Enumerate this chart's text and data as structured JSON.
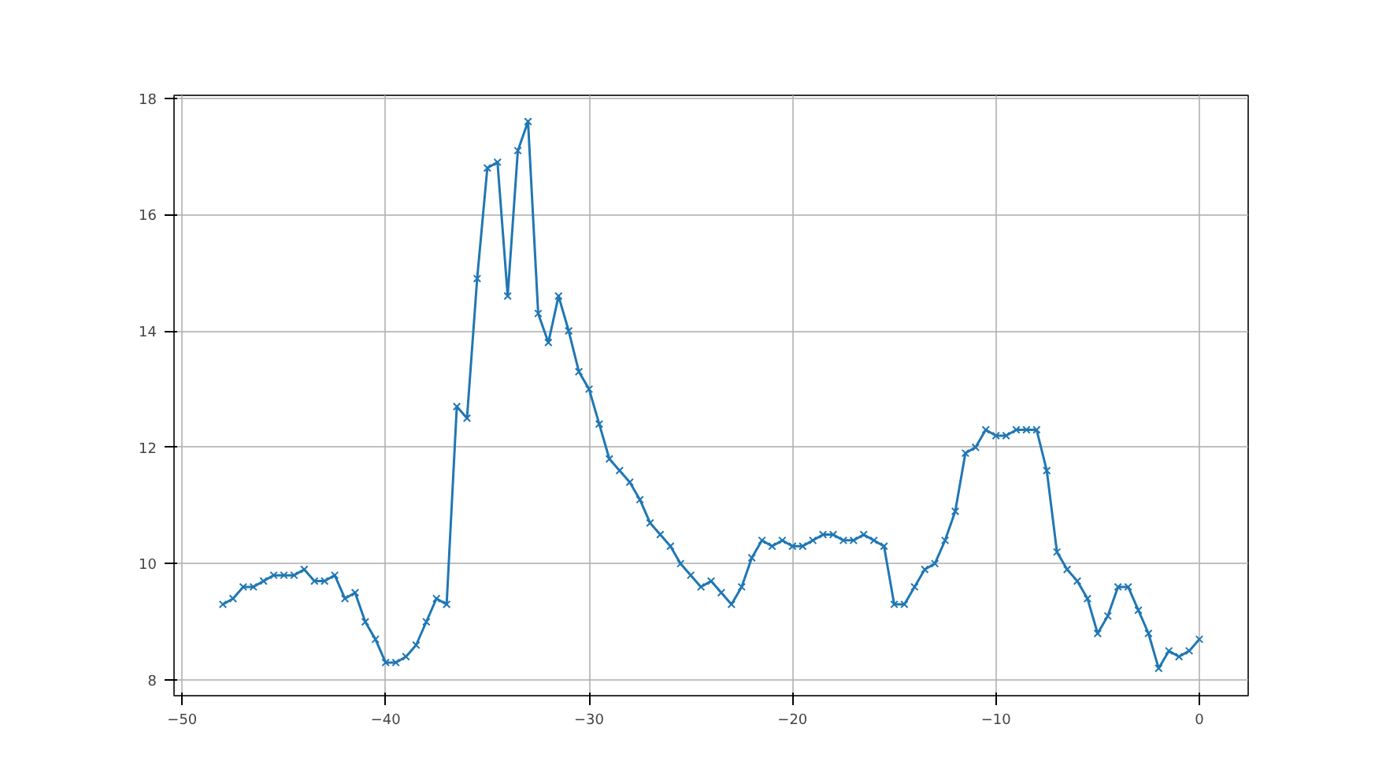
{
  "chart_data": {
    "type": "line",
    "marker": "cross",
    "grid": true,
    "xlim": [
      -50.4,
      2.4
    ],
    "ylim": [
      7.73,
      18.05
    ],
    "xticks": [
      -50,
      -40,
      -30,
      -20,
      -10,
      0
    ],
    "yticks": [
      8,
      10,
      12,
      14,
      16,
      18
    ],
    "x": [
      -48,
      -47.5,
      -47,
      -46.5,
      -46,
      -45.5,
      -45,
      -44.5,
      -44,
      -43.5,
      -43,
      -42.5,
      -42,
      -41.5,
      -41,
      -40.5,
      -40,
      -39.5,
      -39,
      -38.5,
      -38,
      -37.5,
      -37,
      -36.5,
      -36,
      -35.5,
      -35,
      -34.5,
      -34,
      -33.5,
      -33,
      -32.5,
      -32,
      -31.5,
      -31,
      -30.5,
      -30,
      -29.5,
      -29,
      -28.5,
      -28,
      -27.5,
      -27,
      -26.5,
      -26,
      -25.5,
      -25,
      -24.5,
      -24,
      -23.5,
      -23,
      -22.5,
      -22,
      -21.5,
      -21,
      -20.5,
      -20,
      -19.5,
      -19,
      -18.5,
      -18,
      -17.5,
      -17,
      -16.5,
      -16,
      -15.5,
      -15,
      -14.5,
      -14,
      -13.5,
      -13,
      -12.5,
      -12,
      -11.5,
      -11,
      -10.5,
      -10,
      -9.5,
      -9,
      -8.5,
      -8,
      -7.5,
      -7,
      -6.5,
      -6,
      -5.5,
      -5,
      -4.5,
      -4,
      -3.5,
      -3,
      -2.5,
      -2,
      -1.5,
      -1,
      -0.5,
      0
    ],
    "series": [
      {
        "color": "#1f77b4",
        "values": [
          9.3,
          9.4,
          9.6,
          9.6,
          9.7,
          9.8,
          9.8,
          9.8,
          9.9,
          9.7,
          9.7,
          9.8,
          9.4,
          9.5,
          9.0,
          8.7,
          8.3,
          8.3,
          8.4,
          8.6,
          9.0,
          9.4,
          9.3,
          12.7,
          12.5,
          14.9,
          16.8,
          16.9,
          14.6,
          17.1,
          17.6,
          14.3,
          13.8,
          14.6,
          14.0,
          13.3,
          13.0,
          12.4,
          11.8,
          11.6,
          11.4,
          11.1,
          10.7,
          10.5,
          10.3,
          10.0,
          9.8,
          9.6,
          9.7,
          9.5,
          9.3,
          9.6,
          10.1,
          10.4,
          10.3,
          10.4,
          10.3,
          10.3,
          10.4,
          10.5,
          10.5,
          10.4,
          10.4,
          10.5,
          10.4,
          10.3,
          9.3,
          9.3,
          9.6,
          9.9,
          10.0,
          10.4,
          10.9,
          11.9,
          12.0,
          12.3,
          12.2,
          12.2,
          12.3,
          12.3,
          12.3,
          11.6,
          10.2,
          9.9,
          9.7,
          9.4,
          8.8,
          9.1,
          9.6,
          9.6,
          9.2,
          8.8,
          8.2,
          8.5,
          8.4,
          8.5,
          8.7
        ]
      }
    ]
  }
}
